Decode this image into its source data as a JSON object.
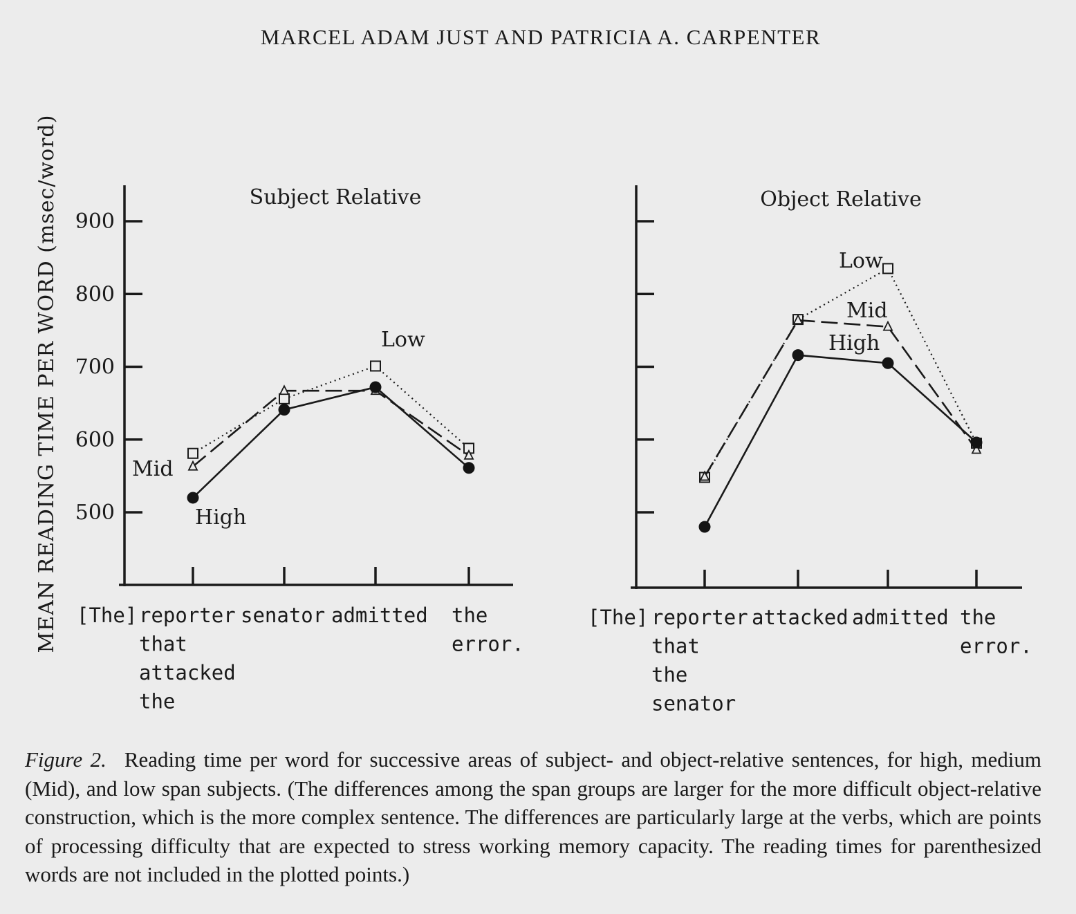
{
  "header": "MARCEL ADAM JUST AND PATRICIA A. CARPENTER",
  "y_axis_label": "MEAN READING TIME PER WORD (msec/word)",
  "chart_data": [
    {
      "type": "line",
      "title": "Subject Relative",
      "ylabel": "MEAN READING TIME PER WORD (msec/word)",
      "y_ticks": [
        "900",
        "800",
        "700",
        "600",
        "500"
      ],
      "ylim": [
        400,
        950
      ],
      "categories": [
        [
          "[The]",
          "reporter",
          "that",
          "attacked",
          "the"
        ],
        [
          "senator"
        ],
        [
          "admitted"
        ],
        [
          "the",
          "error."
        ]
      ],
      "series": [
        {
          "name": "Low",
          "marker": "square",
          "dash": "dotted",
          "values": [
            581,
            656,
            701,
            588
          ]
        },
        {
          "name": "Mid",
          "marker": "triangle",
          "dash": "dashed",
          "values": [
            563,
            667,
            667,
            578
          ]
        },
        {
          "name": "High",
          "marker": "circle",
          "dash": "solid",
          "values": [
            520,
            641,
            672,
            561
          ]
        }
      ],
      "labels": [
        {
          "series": "Low",
          "text": "Low"
        },
        {
          "series": "Mid",
          "text": "Mid"
        },
        {
          "series": "High",
          "text": "High"
        }
      ]
    },
    {
      "type": "line",
      "title": "Object Relative",
      "ylim": [
        400,
        950
      ],
      "categories": [
        [
          "[The]",
          "reporter",
          "that",
          "the",
          "senator"
        ],
        [
          "attacked"
        ],
        [
          "admitted"
        ],
        [
          "the",
          "error."
        ]
      ],
      "series": [
        {
          "name": "Low",
          "marker": "square",
          "dash": "dotted",
          "values": [
            548,
            765,
            835,
            595
          ]
        },
        {
          "name": "Mid",
          "marker": "triangle",
          "dash": "dashed",
          "values": [
            549,
            764,
            755,
            586
          ]
        },
        {
          "name": "High",
          "marker": "circle",
          "dash": "solid",
          "values": [
            480,
            716,
            705,
            596
          ]
        }
      ],
      "labels": [
        {
          "series": "Low",
          "text": "Low"
        },
        {
          "series": "Mid",
          "text": "Mid"
        },
        {
          "series": "High",
          "text": "High"
        }
      ]
    }
  ],
  "caption": {
    "label": "Figure 2.",
    "text": "Reading time per word for successive areas of subject- and object-relative sentences, for high, medium (Mid), and low span subjects. (The differences among the span groups are larger for the more difficult object-relative construction, which is the more complex sentence. The differences are particularly large at the verbs, which are points of processing difficulty that are expected to stress working memory capacity. The reading times for parenthesized words are not included in the plotted points.)"
  }
}
